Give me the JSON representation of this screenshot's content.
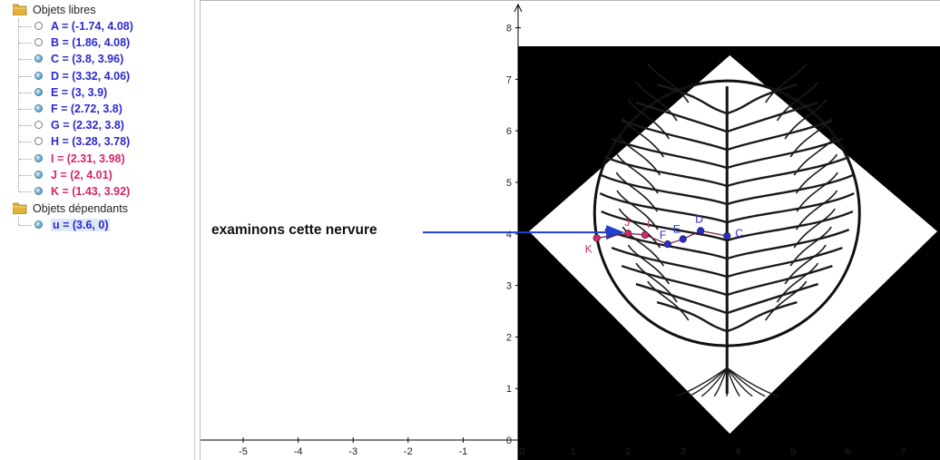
{
  "algebra_view": {
    "free_objects_label": "Objets libres",
    "free_objects": [
      {
        "text": "A = (-1.74, 4.08)",
        "visible": false,
        "color": "#2a2ad0"
      },
      {
        "text": "B = (1.86, 4.08)",
        "visible": false,
        "color": "#2a2ad0"
      },
      {
        "text": "C = (3.8, 3.96)",
        "visible": true,
        "color": "#2a2ad0"
      },
      {
        "text": "D = (3.32, 4.06)",
        "visible": true,
        "color": "#2a2ad0"
      },
      {
        "text": "E = (3, 3.9)",
        "visible": true,
        "color": "#2a2ad0"
      },
      {
        "text": "F = (2.72, 3.8)",
        "visible": true,
        "color": "#2a2ad0"
      },
      {
        "text": "G = (2.32, 3.8)",
        "visible": false,
        "color": "#2a2ad0"
      },
      {
        "text": "H = (3.28, 3.78)",
        "visible": false,
        "color": "#2a2ad0"
      },
      {
        "text": "I = (2.31, 3.98)",
        "visible": true,
        "color": "#d6256a"
      },
      {
        "text": "J = (2, 4.01)",
        "visible": true,
        "color": "#d6256a"
      },
      {
        "text": "K = (1.43, 3.92)",
        "visible": true,
        "color": "#d6256a"
      }
    ],
    "dependent_objects_label": "Objets dépendants",
    "dependent_objects": [
      {
        "text": "u = (3.6, 0)",
        "visible": true,
        "color": "#2a2ad0"
      }
    ]
  },
  "graphics_view": {
    "annotation": "examinons cette nervure",
    "x_ticks": [
      "-5",
      "-4",
      "-3",
      "-2",
      "-1",
      "0",
      "1",
      "2",
      "3",
      "4",
      "5",
      "6",
      "7"
    ],
    "y_ticks": [
      "0",
      "1",
      "2",
      "3",
      "4",
      "5",
      "6",
      "7",
      "8"
    ],
    "x_range": [
      -5.8,
      7.6
    ],
    "y_range": [
      -0.4,
      8.5
    ],
    "points": [
      {
        "name": "K",
        "x": 1.43,
        "y": 3.92,
        "color": "#d6256a"
      },
      {
        "name": "J",
        "x": 2,
        "y": 4.01,
        "color": "#d6256a"
      },
      {
        "name": "I",
        "x": 2.31,
        "y": 3.98,
        "color": "#d6256a"
      },
      {
        "name": "F",
        "x": 2.72,
        "y": 3.8,
        "color": "#2a2ad0"
      },
      {
        "name": "E",
        "x": 3,
        "y": 3.9,
        "color": "#2a2ad0"
      },
      {
        "name": "D",
        "x": 3.32,
        "y": 4.06,
        "color": "#2a2ad0"
      },
      {
        "name": "C",
        "x": 3.8,
        "y": 3.96,
        "color": "#2a2ad0"
      }
    ],
    "colors": {
      "background_image": "#000000",
      "leaf_area": "#ffffff",
      "arrow": "#1f3fd0",
      "axis": "#000000"
    }
  }
}
